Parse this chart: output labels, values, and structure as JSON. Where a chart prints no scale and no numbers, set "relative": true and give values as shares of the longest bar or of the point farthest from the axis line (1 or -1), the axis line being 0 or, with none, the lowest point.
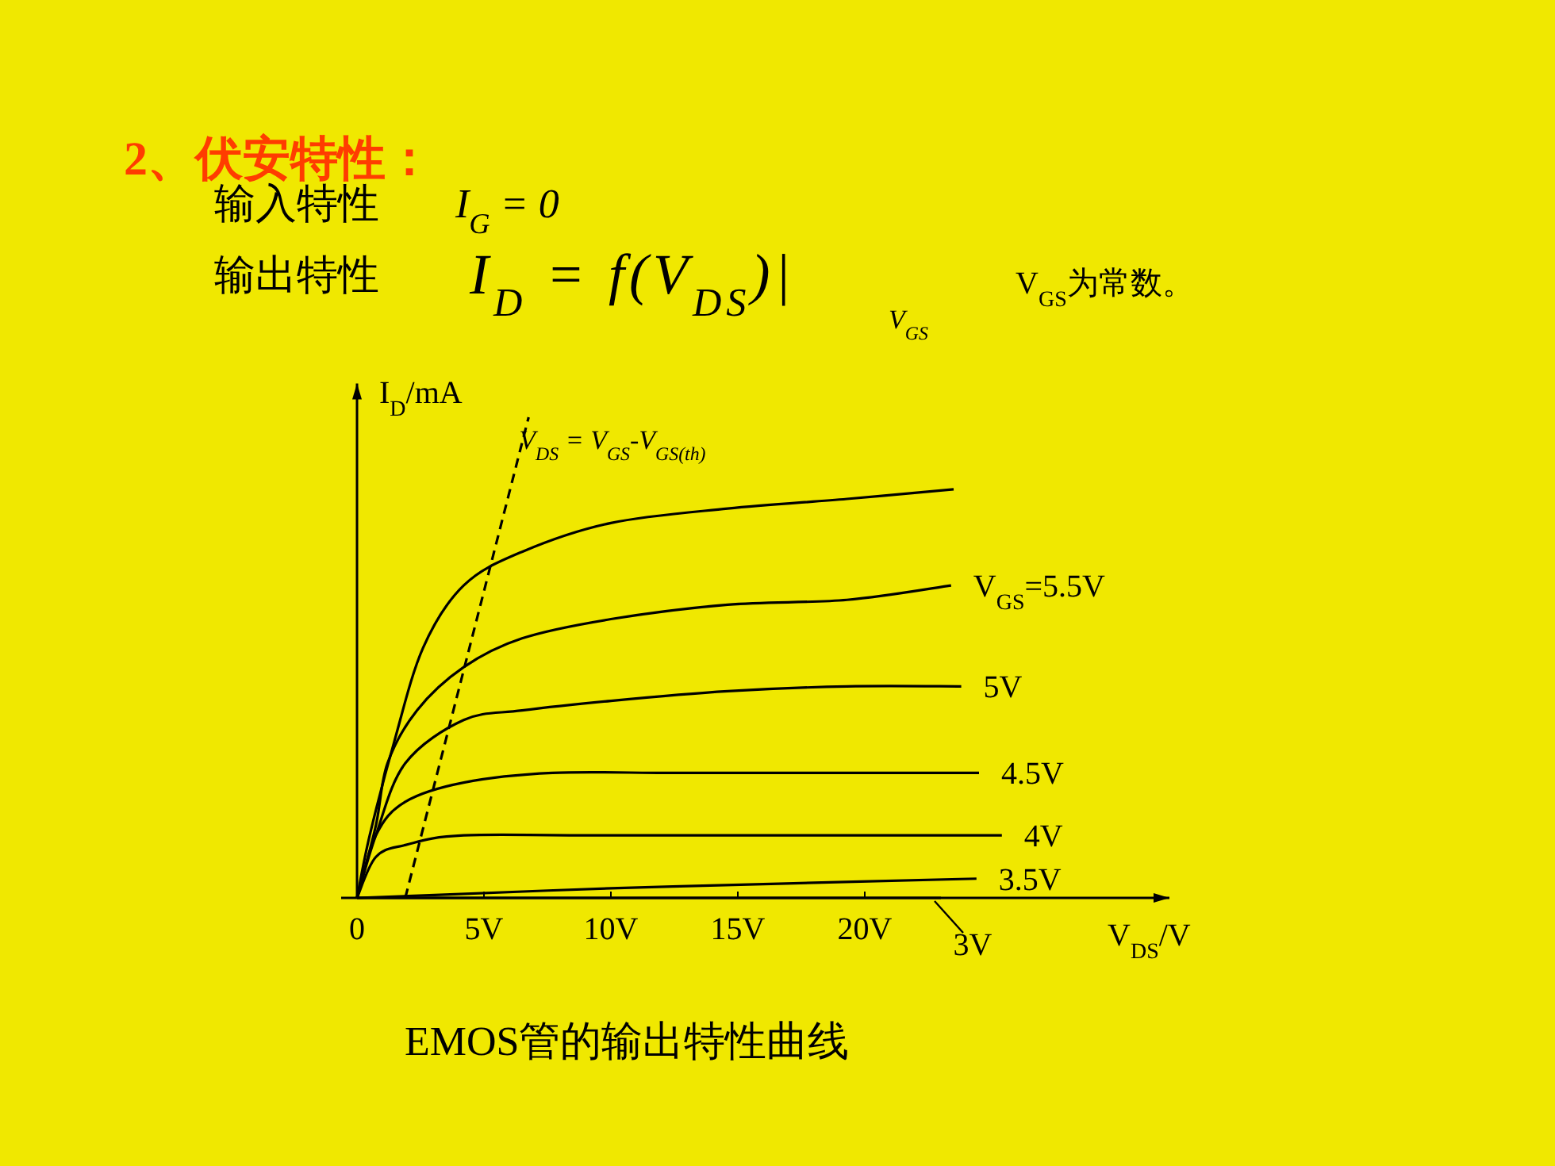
{
  "chart_data": {
    "type": "line",
    "title": "2、伏安特性：",
    "xlabel": "V$_{DS}$/V",
    "ylabel": "I$_{D}$/mA",
    "relative": true,
    "xlim": [
      0,
      32
    ],
    "xticks": [
      {
        "value": 0,
        "label": "0"
      },
      {
        "value": 5,
        "label": "5V"
      },
      {
        "value": 10,
        "label": "10V"
      },
      {
        "value": 15,
        "label": "15V"
      },
      {
        "value": 20,
        "label": "20V"
      }
    ],
    "series": [
      {
        "color": "#000000",
        "x": [
          0,
          0.5,
          1.44,
          2.6,
          4.2,
          6.5,
          10,
          14.6,
          19.3,
          23.5
        ],
        "values": [
          0,
          0.13,
          0.32,
          0.52,
          0.65,
          0.72,
          0.78,
          0.81,
          0.83,
          0.85
        ]
      },
      {
        "name": "V$_{GS}$=5.5V",
        "color": "#000000",
        "x": [
          0,
          0.74,
          1.2,
          2.36,
          4.2,
          6.5,
          10,
          14.6,
          19.3,
          23.4
        ],
        "values": [
          0,
          0.15,
          0.28,
          0.39,
          0.48,
          0.54,
          0.58,
          0.61,
          0.62,
          0.65
        ]
      },
      {
        "name": "5V",
        "color": "#000000",
        "x": [
          0,
          0.74,
          1.9,
          4.2,
          6.5,
          10,
          14.6,
          19.3,
          23.8
        ],
        "values": [
          0,
          0.13,
          0.28,
          0.37,
          0.39,
          0.41,
          0.43,
          0.44,
          0.44
        ]
      },
      {
        "name": "4.5V",
        "color": "#000000",
        "x": [
          0,
          0.74,
          1.9,
          4.2,
          7.7,
          12.3,
          16.9,
          24.5
        ],
        "values": [
          0,
          0.13,
          0.2,
          0.24,
          0.26,
          0.26,
          0.26,
          0.26
        ]
      },
      {
        "name": "4V",
        "color": "#000000",
        "x": [
          0,
          0.74,
          1.9,
          4.2,
          10,
          25.4
        ],
        "values": [
          0,
          0.085,
          0.11,
          0.13,
          0.13,
          0.13
        ]
      },
      {
        "name": "3.5V",
        "color": "#000000",
        "x": [
          0,
          3.06,
          10,
          16.9,
          24.4
        ],
        "values": [
          0,
          0.006,
          0.02,
          0.03,
          0.04
        ]
      },
      {
        "name": "3V",
        "color": "#000000",
        "x": [
          0,
          23
        ],
        "values": [
          0,
          0
        ]
      },
      {
        "name": "V$_{DS}$ = V$_{GS}$-V$_{GS(th)}$",
        "color": "#000000",
        "line_style": "dashed",
        "x": [
          1.9,
          6.76
        ],
        "values": [
          0,
          1
        ]
      }
    ],
    "annotations": [
      "输入特性",
      "I$_{G}$ = 0",
      "输出特性",
      "I$_{D}$ = f(V$_{DS}$)|",
      "V$_{GS}$",
      "V$_{GS}$为常数。",
      "EMOS管的输出特性曲线"
    ]
  }
}
